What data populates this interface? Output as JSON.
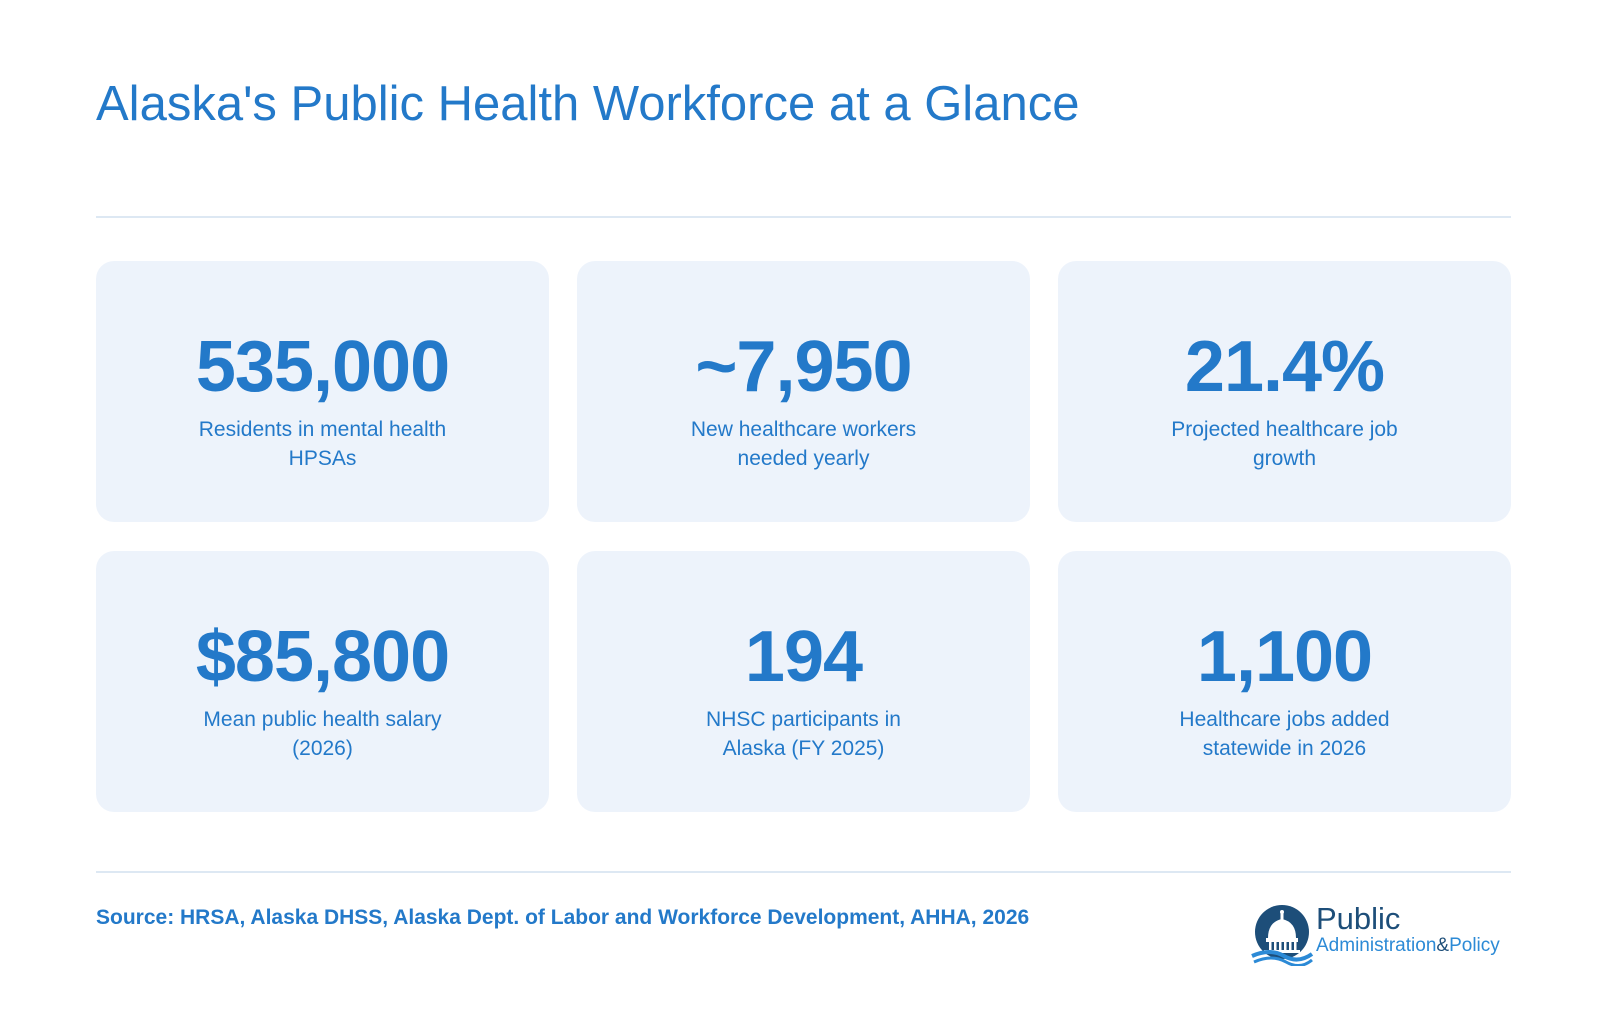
{
  "title": "Alaska's Public Health Workforce at a Glance",
  "stats": [
    {
      "value": "535,000",
      "label": "Residents in mental health HPSAs"
    },
    {
      "value": "~7,950",
      "label": "New healthcare workers needed yearly"
    },
    {
      "value": "21.4%",
      "label": "Projected healthcare job growth"
    },
    {
      "value": "$85,800",
      "label": "Mean public health salary (2026)"
    },
    {
      "value": "194",
      "label": "NHSC participants in Alaska (FY 2025)"
    },
    {
      "value": "1,100",
      "label": "Healthcare jobs added statewide in 2026"
    }
  ],
  "source": "Source: HRSA, Alaska DHSS, Alaska Dept. of Labor and Workforce Development, AHHA, 2026",
  "logo": {
    "line1": "Public",
    "line2a": "Administration",
    "line2b": "&",
    "line2c": "Policy",
    "icon": "capitol-dome-icon"
  },
  "colors": {
    "accent": "#2379c9",
    "card_background": "#edf3fb",
    "divider": "#dde8f3",
    "logo_dark": "#1d4e79"
  }
}
